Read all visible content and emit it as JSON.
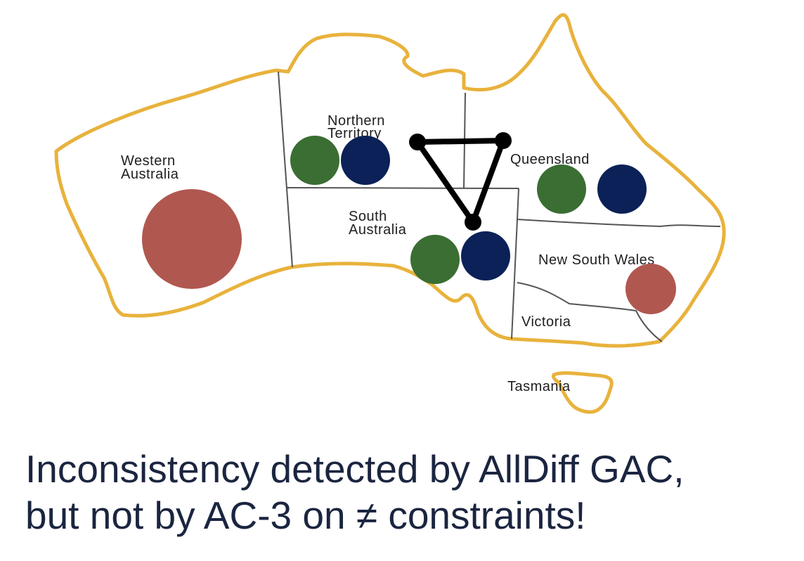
{
  "regions": {
    "western_australia": [
      "Western",
      "Australia"
    ],
    "northern_territory": [
      "Northern",
      "Territory"
    ],
    "south_australia": [
      "South",
      "Australia"
    ],
    "queensland": "Queensland",
    "new_south_wales": "New South Wales",
    "victoria": "Victoria",
    "tasmania": "Tasmania"
  },
  "colors": {
    "outline": "#e8b23c",
    "border": "#555555",
    "red": "#b0584f",
    "green": "#3a6e33",
    "blue": "#0b2157",
    "constraint": "#000000"
  },
  "domains": {
    "western_australia": [
      "red"
    ],
    "northern_territory": [
      "green",
      "blue"
    ],
    "queensland": [
      "green",
      "blue"
    ],
    "south_australia": [
      "green",
      "blue"
    ],
    "new_south_wales": [
      "red"
    ]
  },
  "constraint_triangle": [
    "northern_territory",
    "queensland",
    "south_australia"
  ],
  "caption": {
    "line1": "Inconsistency detected by AllDiff GAC,",
    "line2": "but not by AC-3 on ≠ constraints!"
  }
}
